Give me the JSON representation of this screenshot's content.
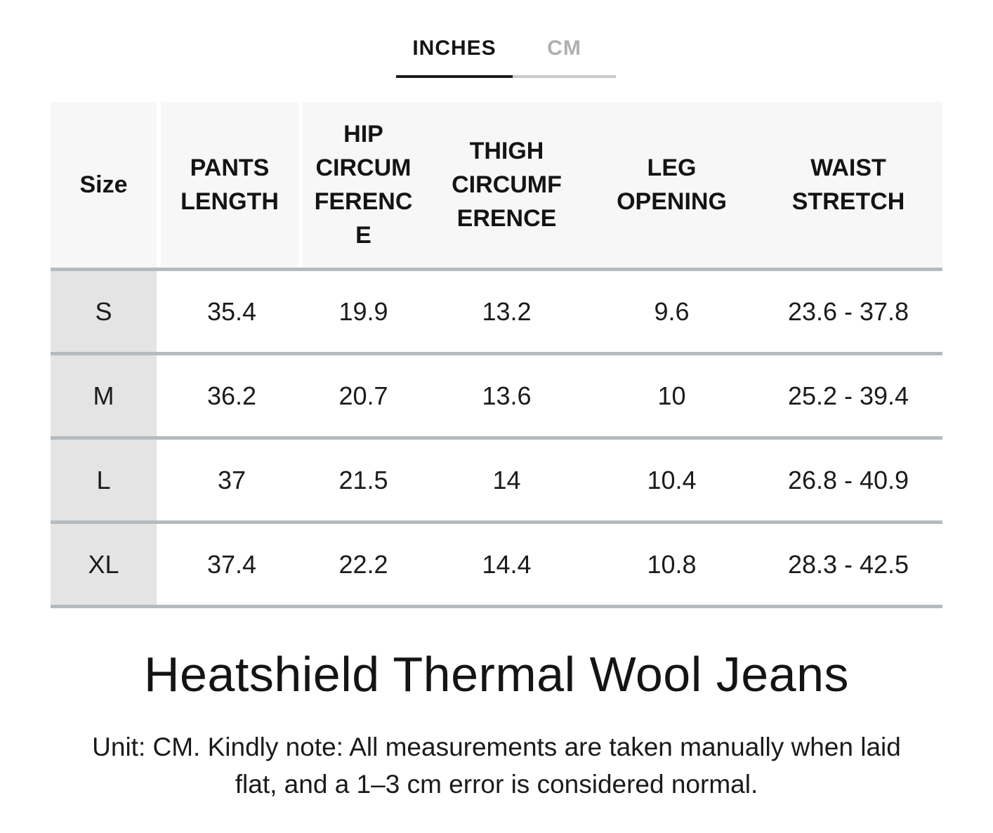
{
  "tabs": [
    {
      "label": "INCHES",
      "active": true
    },
    {
      "label": "CM",
      "active": false
    }
  ],
  "table": {
    "header": [
      "Size",
      "PANTS\nLENGTH",
      "HIP\nCIRCUM\nFERENC\nE",
      "THIGH\nCIRCUMF\nERENCE",
      "LEG\nOPENING",
      "WAIST\nSTRETCH"
    ],
    "rows": [
      {
        "size": "S",
        "values": [
          "35.4",
          "19.9",
          "13.2",
          "9.6",
          "23.6 - 37.8"
        ]
      },
      {
        "size": "M",
        "values": [
          "36.2",
          "20.7",
          "13.6",
          "10",
          "25.2 - 39.4"
        ]
      },
      {
        "size": "L",
        "values": [
          "37",
          "21.5",
          "14",
          "10.4",
          "26.8 - 40.9"
        ]
      },
      {
        "size": "XL",
        "values": [
          "37.4",
          "22.2",
          "14.4",
          "10.8",
          "28.3 - 42.5"
        ]
      }
    ]
  },
  "chart_data": {
    "type": "table",
    "columns": [
      "Size",
      "PANTS LENGTH",
      "HIP CIRCUMFERENCE",
      "THIGH CIRCUMFERENCE",
      "LEG OPENING",
      "WAIST STRETCH"
    ],
    "rows": [
      [
        "S",
        "35.4",
        "19.9",
        "13.2",
        "9.6",
        "23.6 - 37.8"
      ],
      [
        "M",
        "36.2",
        "20.7",
        "13.6",
        "10",
        "25.2 - 39.4"
      ],
      [
        "L",
        "37",
        "21.5",
        "14",
        "10.4",
        "26.8 - 40.9"
      ],
      [
        "XL",
        "37.4",
        "22.2",
        "14.4",
        "10.8",
        "28.3 - 42.5"
      ]
    ],
    "unit_selected": "INCHES"
  },
  "title": "Heatshield Thermal Wool Jeans",
  "note": {
    "line1": "Unit: CM. Kindly note: All measurements are taken manually when laid",
    "line2": "flat, and a 1–3 cm error is considered normal."
  },
  "colors": {
    "text": "#141414",
    "header_bg": "#f7f7f7",
    "size_col_bg": "#e4e4e4",
    "row_separator": "#b4bac0",
    "active_tab_underline": "#1b1b1b",
    "inactive_tab_text": "#b0b0b0",
    "inactive_tab_underline": "#cbcbcb"
  }
}
